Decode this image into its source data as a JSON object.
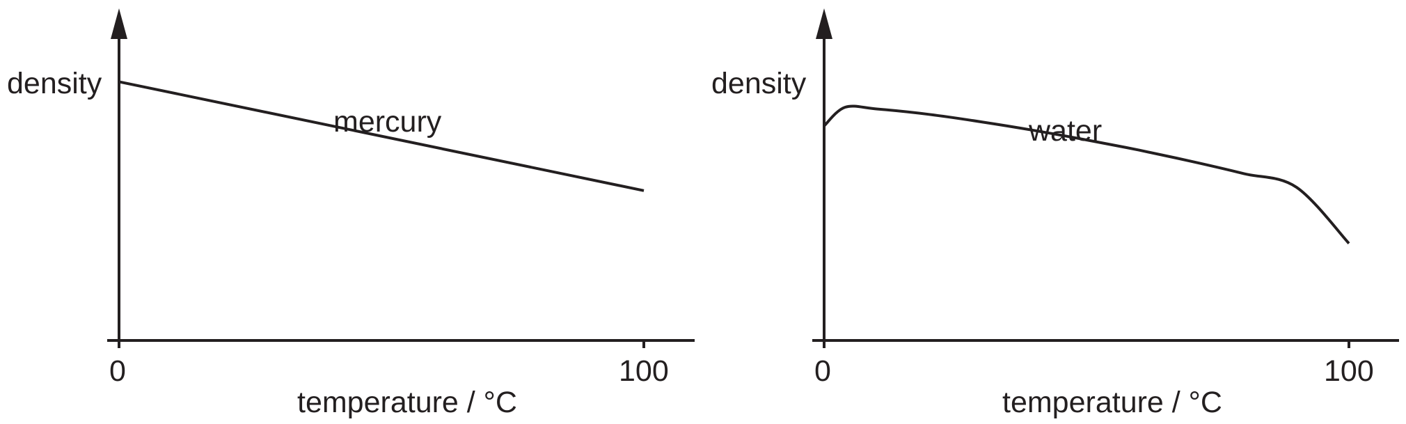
{
  "charts": [
    {
      "id": "left",
      "curve_label": "mercury",
      "ylabel": "density",
      "xlabel": "temperature / °C",
      "x_ticks": [
        "0",
        "100"
      ]
    },
    {
      "id": "right",
      "curve_label": "water",
      "ylabel": "density",
      "xlabel": "temperature / °C",
      "x_ticks": [
        "0",
        "100"
      ]
    }
  ],
  "chart_data": [
    {
      "type": "line",
      "xlabel": "temperature / °C",
      "ylabel": "density",
      "xlim": [
        0,
        100
      ],
      "ylim": [
        0,
        1
      ],
      "y_tick_labels": false,
      "grid": false,
      "series": [
        {
          "name": "mercury",
          "x": [
            0,
            100
          ],
          "y": [
            0.76,
            0.44
          ]
        }
      ]
    },
    {
      "type": "line",
      "xlabel": "temperature / °C",
      "ylabel": "density",
      "xlim": [
        0,
        100
      ],
      "ylim": [
        0,
        1
      ],
      "y_tick_labels": false,
      "grid": false,
      "series": [
        {
          "name": "water",
          "x": [
            0,
            4,
            10,
            20,
            30,
            40,
            50,
            60,
            70,
            80,
            90,
            100
          ],
          "y": [
            0.63,
            0.685,
            0.68,
            0.664,
            0.642,
            0.617,
            0.589,
            0.559,
            0.526,
            0.49,
            0.45,
            0.285
          ]
        }
      ]
    }
  ]
}
